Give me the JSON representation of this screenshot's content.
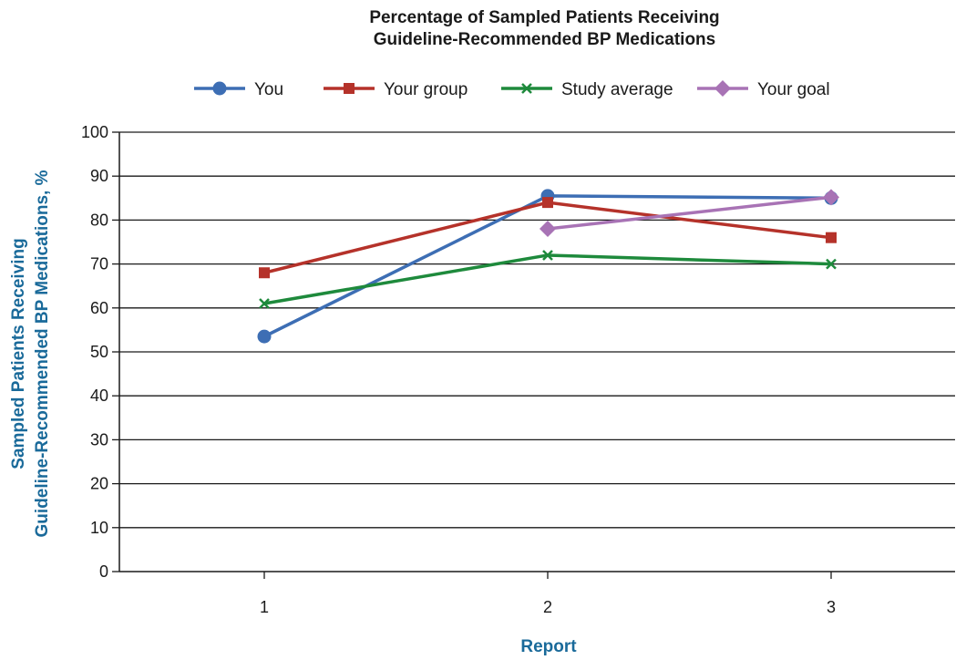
{
  "chart_data": {
    "type": "line",
    "title_lines": [
      "Percentage of Sampled Patients Receiving",
      "Guideline-Recommended BP Medications"
    ],
    "xlabel": "Report",
    "ylabel_lines": [
      "Sampled Patients Receiving",
      "Guideline-Recommended BP Medications, %"
    ],
    "categories": [
      "1",
      "2",
      "3"
    ],
    "ylim": [
      0,
      100
    ],
    "yticks": [
      0,
      10,
      20,
      30,
      40,
      50,
      60,
      70,
      80,
      90,
      100
    ],
    "grid": true,
    "legend_position": "top",
    "series": [
      {
        "name": "You",
        "color": "#3d6eb4",
        "marker": "circle",
        "values": [
          53.5,
          85.5,
          85
        ]
      },
      {
        "name": "Your group",
        "color": "#b5322a",
        "marker": "square",
        "values": [
          68,
          84,
          76
        ]
      },
      {
        "name": "Study average",
        "color": "#1e8a3c",
        "marker": "x",
        "values": [
          61,
          72,
          70
        ]
      },
      {
        "name": "Your goal",
        "color": "#a873b5",
        "marker": "diamond",
        "values": [
          null,
          78,
          85.2
        ]
      }
    ]
  }
}
